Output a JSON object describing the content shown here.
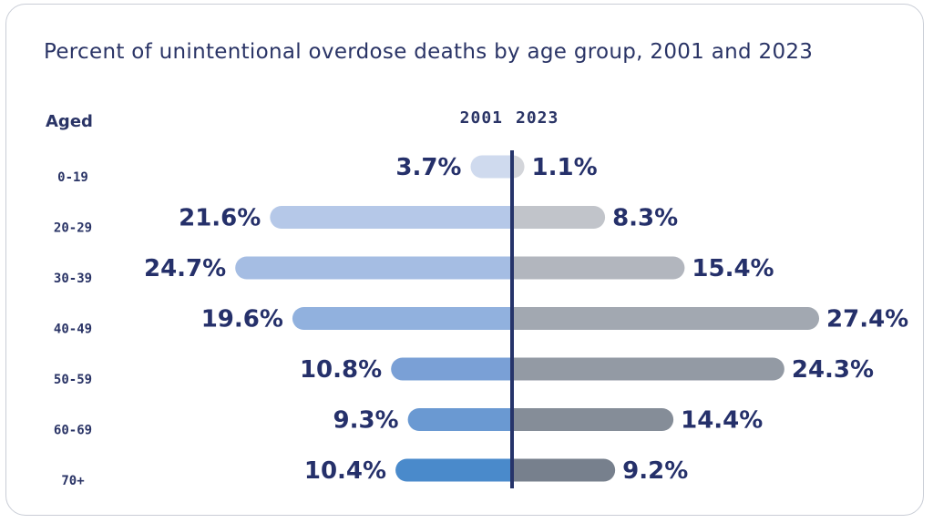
{
  "title": "Percent of unintentional overdose deaths by age group, 2001 and 2023",
  "row_header": "Aged",
  "chart_data": {
    "type": "bar",
    "orientation": "horizontal-butterfly",
    "title": "Percent of unintentional overdose deaths by age group, 2001 and 2023",
    "categories": [
      "0-19",
      "20-29",
      "30-39",
      "40-49",
      "50-59",
      "60-69",
      "70+"
    ],
    "series": [
      {
        "name": "2001",
        "values": [
          3.7,
          21.6,
          24.7,
          19.6,
          10.8,
          9.3,
          10.4
        ],
        "labels": [
          "3.7%",
          "21.6%",
          "24.7%",
          "19.6%",
          "10.8%",
          "9.3%",
          "10.4%"
        ],
        "colors": [
          "#cfdaee",
          "#b5c8e8",
          "#a5bde3",
          "#91b1de",
          "#7aa0d6",
          "#6a99d2",
          "#4a8acb"
        ]
      },
      {
        "name": "2023",
        "values": [
          1.1,
          8.3,
          15.4,
          27.4,
          24.3,
          14.4,
          9.2
        ],
        "labels": [
          "1.1%",
          "8.3%",
          "15.4%",
          "27.4%",
          "24.3%",
          "14.4%",
          "9.2%"
        ],
        "colors": [
          "#d3d5da",
          "#c1c4ca",
          "#b2b6be",
          "#a2a8b1",
          "#939aa4",
          "#858d98",
          "#77808d"
        ]
      }
    ],
    "axis_color": "#26346a",
    "grid": false
  }
}
